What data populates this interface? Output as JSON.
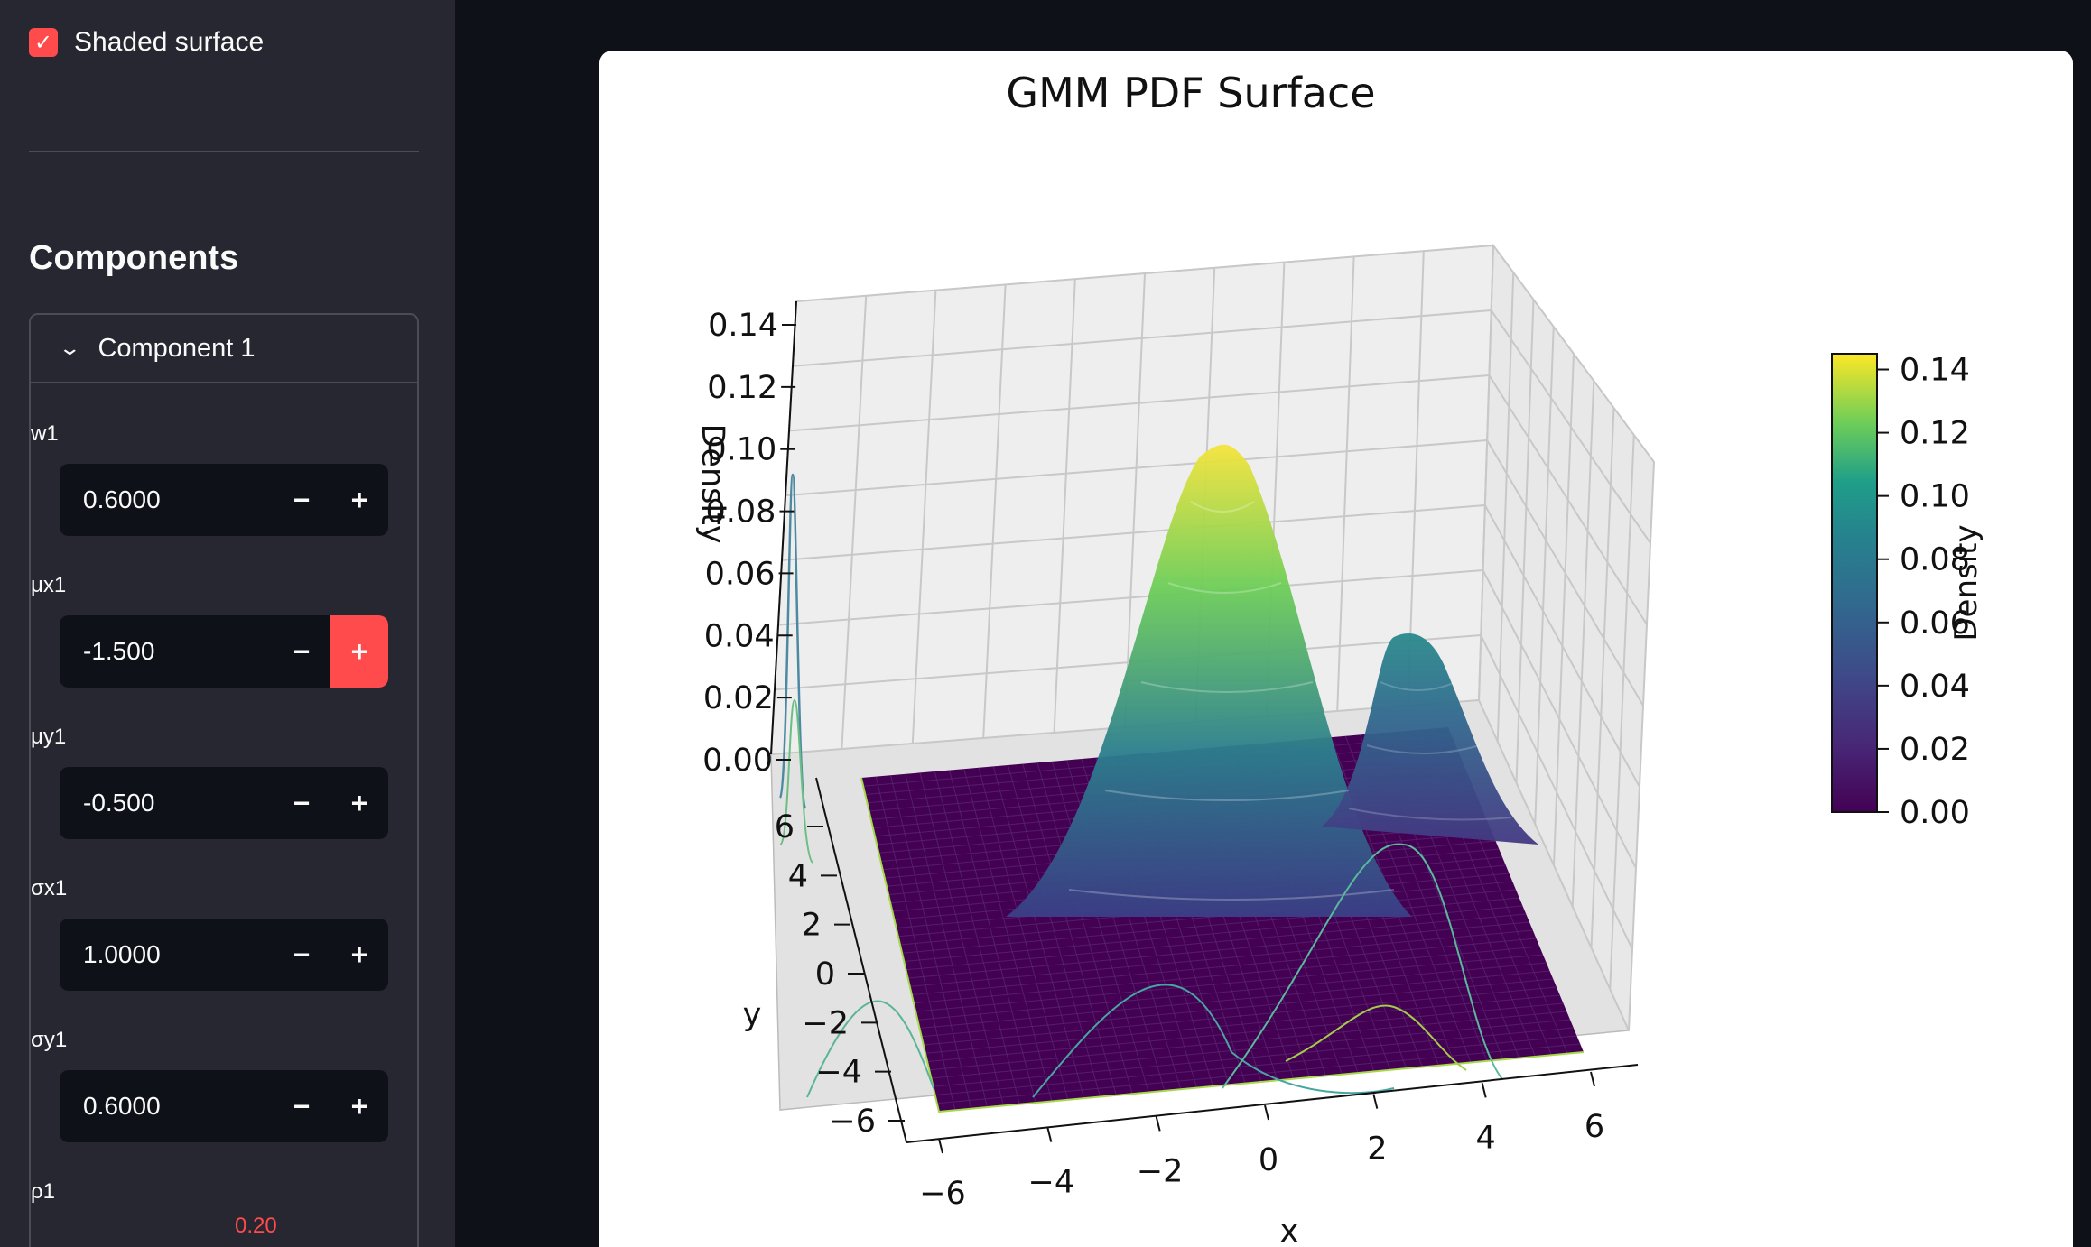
{
  "sidebar": {
    "shaded_checkbox": {
      "label": "Shaded surface",
      "checked": true
    },
    "section_title": "Components",
    "component": {
      "title": "Component 1",
      "expanded": true,
      "params": [
        {
          "label": "w1",
          "value": "0.6000"
        },
        {
          "label": "μx1",
          "value": "-1.500"
        },
        {
          "label": "μy1",
          "value": "-0.500"
        },
        {
          "label": "σx1",
          "value": "1.0000"
        },
        {
          "label": "σy1",
          "value": "0.6000"
        }
      ],
      "rho": {
        "label": "ρ1",
        "value": "0.20"
      }
    },
    "accent_color": "#ff4b4b"
  },
  "chart_data": {
    "type": "surface3d",
    "title": "GMM PDF Surface",
    "xlabel": "x",
    "ylabel": "y",
    "zlabel": "Density",
    "x_ticks": [
      "−6",
      "−4",
      "−2",
      "0",
      "2",
      "4",
      "6"
    ],
    "y_ticks": [
      "−6",
      "−4",
      "−2",
      "0",
      "2",
      "4",
      "6"
    ],
    "z_ticks": [
      "0.00",
      "0.02",
      "0.04",
      "0.06",
      "0.08",
      "0.10",
      "0.12",
      "0.14"
    ],
    "xlim": [
      -6,
      6
    ],
    "ylim": [
      -6,
      6
    ],
    "zlim": [
      0,
      0.14
    ],
    "colormap": "viridis",
    "colorbar": {
      "label": "Density",
      "ticks": [
        "0.00",
        "0.02",
        "0.04",
        "0.06",
        "0.08",
        "0.10",
        "0.12",
        "0.14"
      ],
      "range": [
        0,
        0.145
      ]
    },
    "peaks": [
      {
        "x": -1.5,
        "y": -0.5,
        "density": 0.14
      },
      {
        "x": 1.5,
        "y": 1.5,
        "density": 0.08
      }
    ],
    "grid": true
  }
}
